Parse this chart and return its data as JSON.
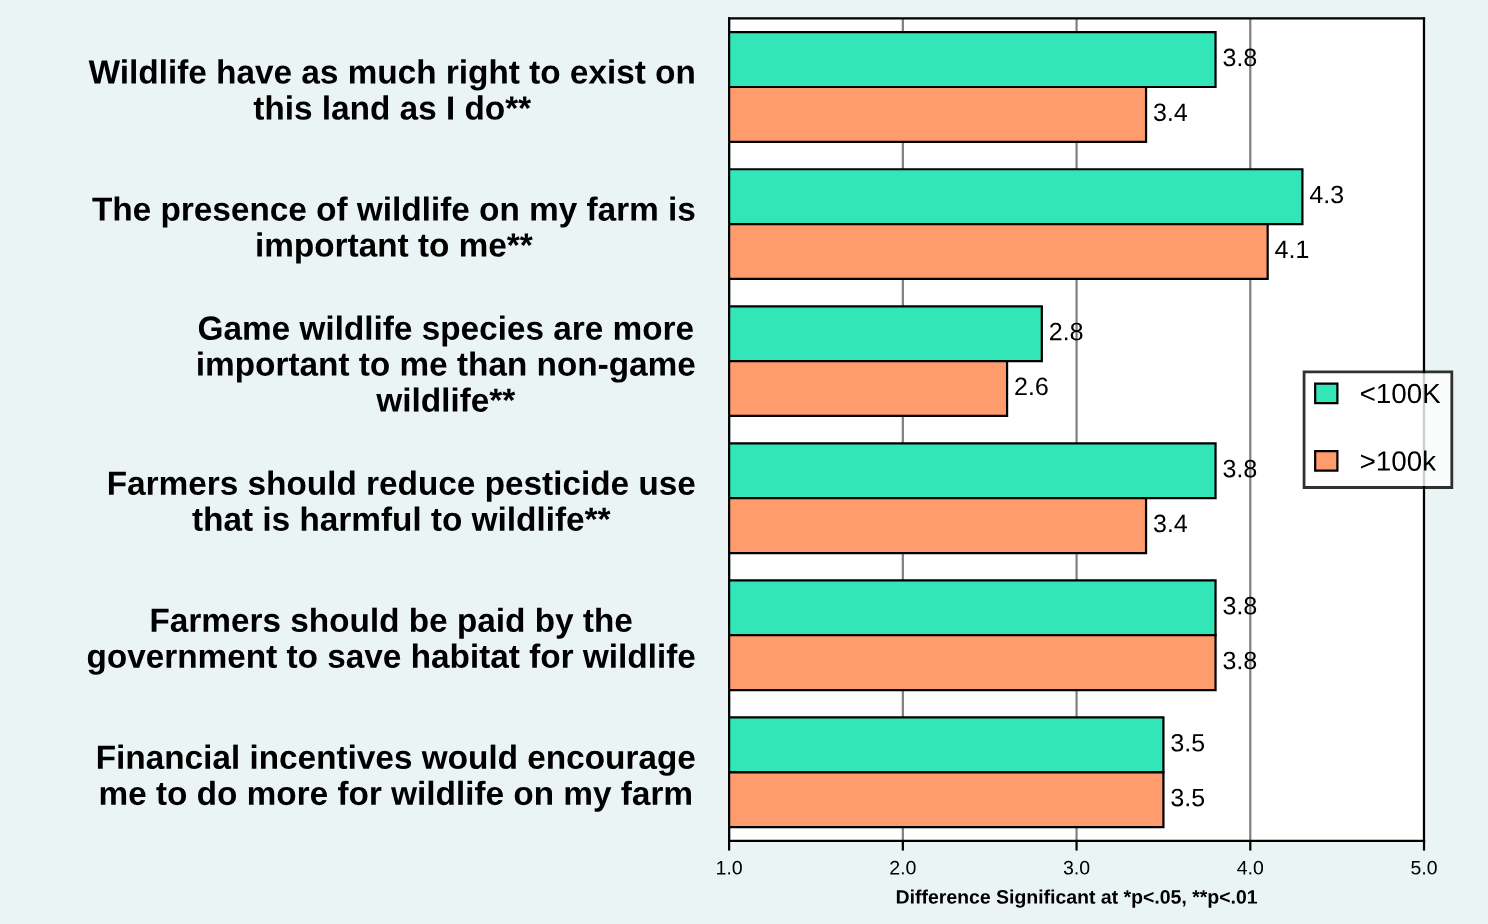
{
  "chart_data": {
    "type": "bar",
    "orientation": "horizontal",
    "xlabel": "Difference Significant at *p<.05, **p<.01",
    "categories": [
      "Wildlife have as much right to exist on\nthis land as I do**",
      "The presence of wildlife on my farm is\nimportant to me**",
      "Game wildlife species are more\nimportant to me than non-game\nwildlife**",
      "Farmers should reduce pesticide use\nthat is harmful to wildlife**",
      "Farmers should be paid by the\ngovernment to save habitat for wildlife",
      "Financial incentives would encourage\nme to do more for wildlife on my farm"
    ],
    "series": [
      {
        "name": "<100K",
        "color": "#33e6b8",
        "values": [
          3.8,
          4.3,
          2.8,
          3.8,
          3.8,
          3.5
        ]
      },
      {
        "name": ">100k",
        "color": "#ff9c6e",
        "values": [
          3.4,
          4.1,
          2.6,
          3.4,
          3.8,
          3.5
        ]
      }
    ],
    "xlim": [
      1.0,
      5.0
    ],
    "xticks": [
      {
        "value": 1,
        "label": "1.0"
      },
      {
        "value": 2,
        "label": "2.0"
      },
      {
        "value": 3,
        "label": "3.0"
      },
      {
        "value": 4,
        "label": "4.0"
      },
      {
        "value": 5,
        "label": "5.0"
      }
    ],
    "grid": "x",
    "legend": "right",
    "data_labels": true
  }
}
